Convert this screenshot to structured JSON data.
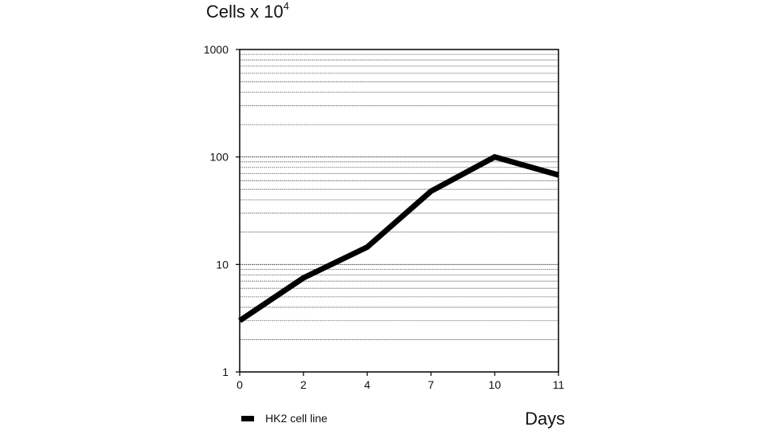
{
  "chart_data": {
    "type": "line",
    "title": "",
    "ylabel": {
      "base": "Cells x 10",
      "exponent": "4"
    },
    "xlabel": "Days",
    "y_scale": "log",
    "ylim": [
      1,
      1000
    ],
    "y_ticks": [
      "1",
      "10",
      "100",
      "1000"
    ],
    "x_ticks": [
      "0",
      "2",
      "4",
      "7",
      "10",
      "11"
    ],
    "grid": true,
    "legend_position": "bottom-left",
    "series": [
      {
        "name": "HK2 cell line",
        "color": "#000000",
        "x": [
          "0",
          "2",
          "4",
          "7",
          "10",
          "11"
        ],
        "values": [
          3,
          7.5,
          14.5,
          48,
          100,
          68
        ]
      }
    ]
  }
}
